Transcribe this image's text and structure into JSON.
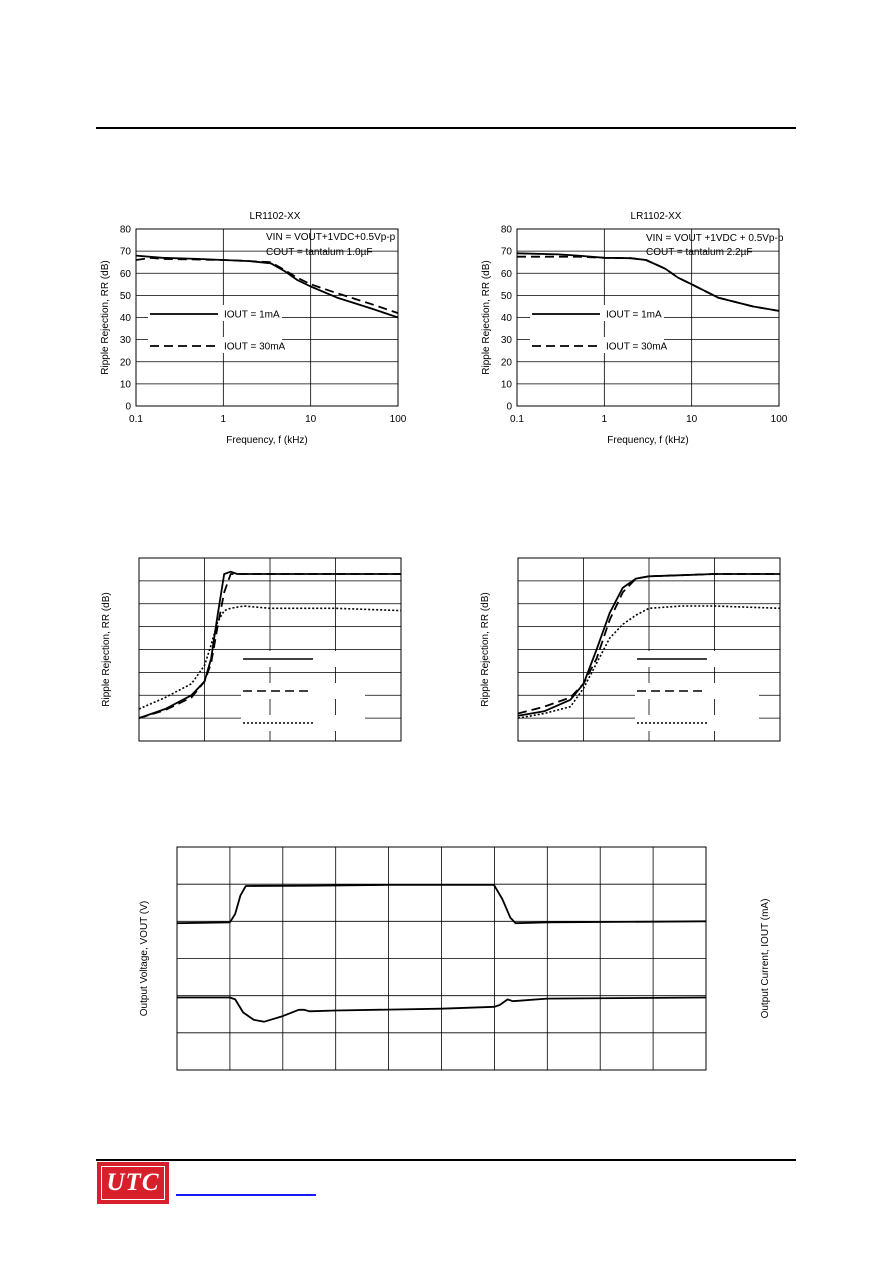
{
  "brand": {
    "logo_text": "UTC"
  },
  "chart_data": [
    {
      "id": "rr1",
      "type": "line",
      "title": "LR1102-XX",
      "xlabel": "Frequency, f (kHz)",
      "ylabel": "Ripple Rejection, RR (dB)",
      "xscale": "log",
      "xlim": [
        0.1,
        100
      ],
      "ylim": [
        0,
        80
      ],
      "xticks": [
        "0.1",
        "1",
        "10",
        "100"
      ],
      "yticks": [
        "0",
        "10",
        "20",
        "30",
        "40",
        "50",
        "60",
        "70",
        "80"
      ],
      "conditions": [
        "VIN = VOUT+1VDC+0.5Vp-p",
        "COUT = tantalum 1.0µF"
      ],
      "grid": true,
      "series": [
        {
          "name": "IOUT = 1mA",
          "style": "solid",
          "x": [
            0.1,
            0.2,
            0.5,
            1,
            2,
            3.5,
            5,
            7,
            10,
            20,
            50,
            100
          ],
          "y": [
            68,
            67,
            66.5,
            66,
            65.5,
            64.5,
            61,
            57,
            54,
            49,
            44,
            40
          ]
        },
        {
          "name": "IOUT = 30mA",
          "style": "dashed",
          "x": [
            0.1,
            0.15,
            0.2,
            0.5,
            1,
            2,
            3.5,
            5,
            7,
            10,
            20,
            50,
            100
          ],
          "y": [
            66,
            67,
            66.5,
            66.2,
            66,
            65.5,
            65,
            61.5,
            58,
            55,
            51,
            46,
            42
          ]
        }
      ]
    },
    {
      "id": "rr2",
      "type": "line",
      "title": "LR1102-XX",
      "xlabel": "Frequency, f (kHz)",
      "ylabel": "Ripple Rejection, RR (dB)",
      "xscale": "log",
      "xlim": [
        0.1,
        100
      ],
      "ylim": [
        0,
        80
      ],
      "xticks": [
        "0.1",
        "1",
        "10",
        "100"
      ],
      "yticks": [
        "0",
        "10",
        "20",
        "30",
        "40",
        "50",
        "60",
        "70",
        "80"
      ],
      "conditions": [
        "VIN = VOUT +1VDC + 0.5Vp-p",
        "COUT = tantalum 2.2µF"
      ],
      "grid": true,
      "series": [
        {
          "name": "IOUT = 1mA",
          "style": "solid",
          "x": [
            0.1,
            0.3,
            0.5,
            1,
            2,
            3,
            5,
            7,
            10,
            20,
            50,
            100
          ],
          "y": [
            69,
            68.5,
            68,
            67,
            66.8,
            66,
            62,
            58,
            55,
            49,
            45,
            43
          ]
        },
        {
          "name": "IOUT = 30mA",
          "style": "dashed",
          "x": [
            0.1,
            0.3,
            0.5,
            1,
            2,
            3,
            5,
            7,
            10,
            20,
            50,
            100
          ],
          "y": [
            67.5,
            67.5,
            67.5,
            67,
            66.8,
            66,
            62,
            58,
            55,
            49,
            45,
            43
          ]
        }
      ]
    },
    {
      "id": "rrv1",
      "type": "line",
      "title": "",
      "xlabel": "",
      "ylabel": "Ripple Rejection, RR (dB)",
      "xlim": [
        0,
        4
      ],
      "ylim": [
        0,
        8
      ],
      "grid": true,
      "legend_samples": [
        "solid",
        "dashed",
        "dotted"
      ],
      "series": [
        {
          "style": "solid",
          "x": [
            0,
            0.4,
            0.8,
            1.0,
            1.1,
            1.2,
            1.3,
            1.4,
            1.5,
            2,
            3,
            4
          ],
          "y": [
            1.0,
            1.4,
            2.0,
            2.6,
            3.6,
            5.5,
            7.3,
            7.4,
            7.3,
            7.3,
            7.3,
            7.3
          ]
        },
        {
          "style": "dashed",
          "x": [
            0,
            0.4,
            0.8,
            1.0,
            1.1,
            1.2,
            1.3,
            1.4,
            1.5,
            1.6,
            2,
            3,
            4
          ],
          "y": [
            1.0,
            1.35,
            1.9,
            2.6,
            3.4,
            5.0,
            6.5,
            7.3,
            7.3,
            7.3,
            7.3,
            7.3,
            7.3
          ]
        },
        {
          "style": "dotted",
          "x": [
            0,
            0.4,
            0.8,
            1.0,
            1.1,
            1.2,
            1.3,
            1.4,
            1.6,
            2,
            3,
            4
          ],
          "y": [
            1.4,
            1.9,
            2.5,
            3.3,
            4.2,
            5.2,
            5.7,
            5.8,
            5.9,
            5.8,
            5.8,
            5.7
          ]
        }
      ]
    },
    {
      "id": "rrv2",
      "type": "line",
      "title": "",
      "xlabel": "",
      "ylabel": "Ripple Rejection, RR (dB)",
      "xlim": [
        0,
        4
      ],
      "ylim": [
        0,
        8
      ],
      "grid": true,
      "legend_samples": [
        "solid",
        "dashed",
        "dotted"
      ],
      "series": [
        {
          "style": "solid",
          "x": [
            0,
            0.4,
            0.8,
            1.0,
            1.2,
            1.4,
            1.6,
            1.8,
            2.0,
            2.5,
            3,
            4
          ],
          "y": [
            1.1,
            1.3,
            1.8,
            2.5,
            4.0,
            5.6,
            6.7,
            7.1,
            7.2,
            7.25,
            7.3,
            7.3
          ]
        },
        {
          "style": "dashed",
          "x": [
            0,
            0.4,
            0.8,
            1.0,
            1.2,
            1.4,
            1.6,
            1.8,
            2.0,
            2.5,
            3,
            4
          ],
          "y": [
            1.2,
            1.5,
            1.9,
            2.5,
            3.6,
            5.3,
            6.5,
            7.1,
            7.2,
            7.25,
            7.3,
            7.3
          ]
        },
        {
          "style": "dotted",
          "x": [
            0,
            0.4,
            0.8,
            1.0,
            1.2,
            1.4,
            1.6,
            1.8,
            2.0,
            2.5,
            3,
            4
          ],
          "y": [
            1.0,
            1.2,
            1.5,
            2.3,
            3.4,
            4.5,
            5.1,
            5.5,
            5.8,
            5.9,
            5.9,
            5.8
          ]
        }
      ]
    },
    {
      "id": "load",
      "type": "line",
      "title": "",
      "xlabel": "",
      "ylabel": "Output Voltage, VOUT (V)",
      "ylabel_right": "Output Current, IOUT (mA)",
      "xlim": [
        0,
        10
      ],
      "ylim": [
        0,
        6
      ],
      "grid": true,
      "series": [
        {
          "style": "solid",
          "x": [
            0,
            1.0,
            1.1,
            1.2,
            1.3,
            2.5,
            4,
            6,
            6.0,
            6.15,
            6.3,
            6.4,
            7,
            10
          ],
          "y": [
            3.95,
            3.97,
            4.2,
            4.7,
            4.95,
            4.96,
            4.98,
            4.98,
            4.96,
            4.6,
            4.1,
            3.95,
            3.97,
            4.0
          ]
        },
        {
          "style": "solid",
          "x": [
            0,
            1.0,
            1.1,
            1.25,
            1.45,
            1.65,
            2.0,
            2.3,
            2.4,
            2.5,
            3,
            5,
            6.0,
            6.1,
            6.25,
            6.35,
            7,
            10
          ],
          "y": [
            1.95,
            1.95,
            1.9,
            1.55,
            1.35,
            1.3,
            1.45,
            1.62,
            1.62,
            1.58,
            1.6,
            1.65,
            1.7,
            1.75,
            1.9,
            1.85,
            1.92,
            1.95
          ]
        }
      ]
    }
  ]
}
